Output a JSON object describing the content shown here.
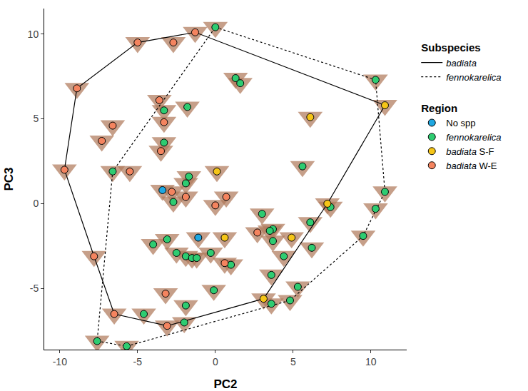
{
  "chart_data": {
    "type": "scatter",
    "x_label": "PC2",
    "y_label": "PC3",
    "xlim": [
      -11,
      12.3
    ],
    "ylim": [
      -8.6,
      11.5
    ],
    "xticks": [
      -10,
      -5,
      0,
      5,
      10
    ],
    "yticks": [
      -5,
      0,
      5,
      10
    ],
    "grid": false,
    "legend": "right",
    "series": [
      {
        "name": "No spp",
        "group": "Region",
        "type": "scatter",
        "marker": "circle",
        "color": "#1ea7e1",
        "x": [
          -3.4,
          -1.1
        ],
        "y": [
          0.8,
          -2.0
        ]
      },
      {
        "name": "fennokarelica",
        "group": "Region",
        "type": "scatter",
        "marker": "circle",
        "color": "#2ecc71",
        "x": [
          0,
          1.3,
          1.6,
          10.3,
          -3.3,
          -1.8,
          -3.3,
          5.6,
          -6.6,
          -1.9,
          -1.7,
          -2.7,
          10.9,
          10.3,
          7.4,
          3.0,
          6.1,
          3.7,
          3.5,
          9.5,
          -3.1,
          -4.0,
          -2.5,
          -1.9,
          -1.5,
          -1.2,
          -0.3,
          3.7,
          4.4,
          6.2,
          1.0,
          3.6,
          -0.1,
          5.3,
          -1.9,
          -4.6,
          4.8,
          3.6,
          -2.0,
          -7.6,
          -5.7
        ],
        "y": [
          10.4,
          7.4,
          7.1,
          7.3,
          5.5,
          5.7,
          3.6,
          2.2,
          1.9,
          1.2,
          1.6,
          0.1,
          0.7,
          -0.3,
          -0.2,
          -0.6,
          -1.1,
          -1.5,
          -1.6,
          -1.9,
          -2.1,
          -2.4,
          -2.9,
          -3.1,
          -3.2,
          -3.2,
          -2.9,
          -2.2,
          -3.1,
          -2.6,
          -3.6,
          -4.2,
          -5.1,
          -4.9,
          -6.0,
          -6.5,
          -5.7,
          -5.9,
          -7.0,
          -8.1,
          -8.4
        ]
      },
      {
        "name": "badiata S-F",
        "group": "Region",
        "type": "scatter",
        "marker": "circle",
        "color": "#f5c518",
        "x": [
          6.1,
          10.9,
          0.1,
          7.2,
          0.6,
          4.9,
          3.1
        ],
        "y": [
          5.1,
          5.8,
          1.9,
          0.0,
          -2.0,
          -2.0,
          -5.6
        ]
      },
      {
        "name": "badiata W-E",
        "group": "Region",
        "type": "scatter",
        "marker": "circle",
        "color": "#f4845f",
        "x": [
          -5.0,
          -2.7,
          -1.3,
          -8.9,
          -6.6,
          -7.3,
          -3.6,
          -3.3,
          -3.5,
          -9.7,
          -5.5,
          -2.8,
          -1.9,
          0.0,
          0.7,
          -7.8,
          2.7,
          -6.5,
          -3.2,
          -3.1,
          0.6
        ],
        "y": [
          9.5,
          9.5,
          10.1,
          6.8,
          4.6,
          3.7,
          6.1,
          4.8,
          3.1,
          2.0,
          1.9,
          0.7,
          0.4,
          -0.1,
          0.4,
          -3.1,
          -1.7,
          -6.5,
          -5.3,
          -7.2,
          -3.5
        ]
      },
      {
        "name": "badiata",
        "group": "Subspecies",
        "type": "line",
        "line_style": "solid",
        "color": "#000000",
        "x": [
          -9.7,
          -8.9,
          -5.0,
          -1.3,
          10.9,
          7.2,
          3.1,
          -3.1,
          -6.5,
          -7.8,
          -9.7
        ],
        "y": [
          2.0,
          6.8,
          9.5,
          10.1,
          5.8,
          0.0,
          -5.6,
          -7.2,
          -6.5,
          -3.1,
          2.0
        ]
      },
      {
        "name": "fennokarelica",
        "group": "Subspecies",
        "type": "line",
        "line_style": "dot",
        "color": "#000000",
        "x": [
          0,
          10.3,
          10.9,
          9.5,
          4.8,
          -5.7,
          -7.6,
          -6.6,
          0
        ],
        "y": [
          10.4,
          7.3,
          0.7,
          -1.9,
          -5.7,
          -8.4,
          -8.1,
          1.9,
          10.4
        ]
      }
    ]
  }
}
